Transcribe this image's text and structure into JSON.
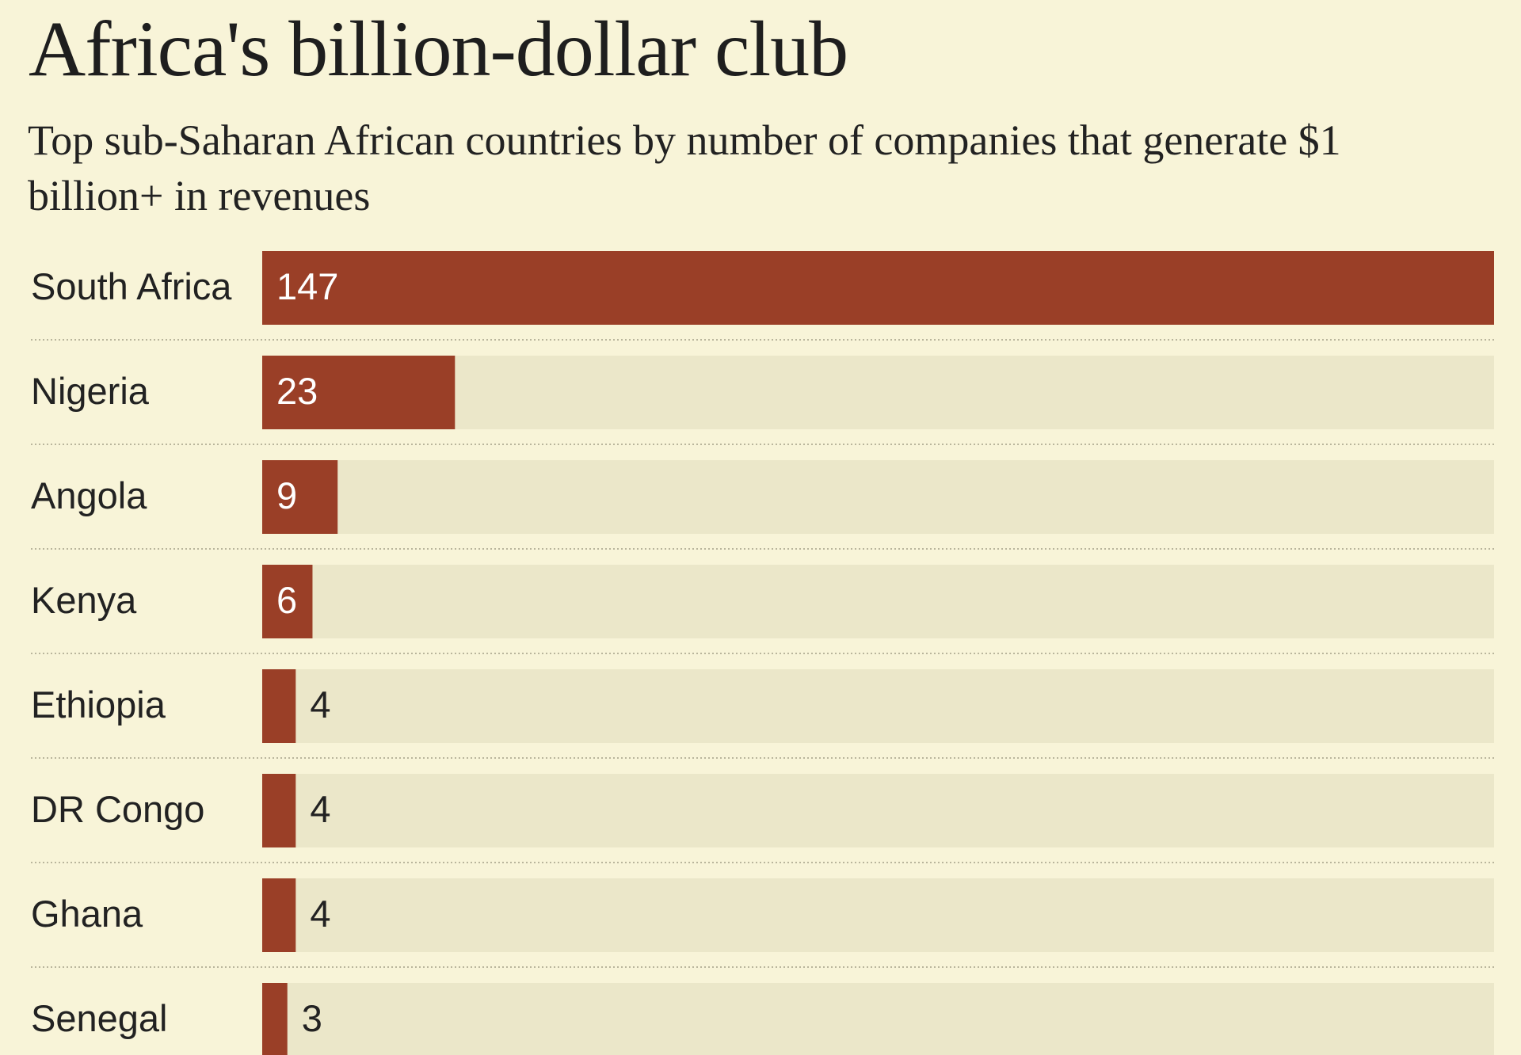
{
  "chart_data": {
    "type": "bar",
    "orientation": "horizontal",
    "title": "Africa's billion-dollar club",
    "subtitle": "Top sub-Saharan African countries by number of companies that generate $1 billion+ in revenues",
    "categories": [
      "South Africa",
      "Nigeria",
      "Angola",
      "Kenya",
      "Ethiopia",
      "DR Congo",
      "Ghana",
      "Senegal"
    ],
    "values": [
      147,
      23,
      9,
      6,
      4,
      4,
      4,
      3
    ],
    "color": "#9a3f27",
    "xlim": [
      0,
      147
    ]
  }
}
